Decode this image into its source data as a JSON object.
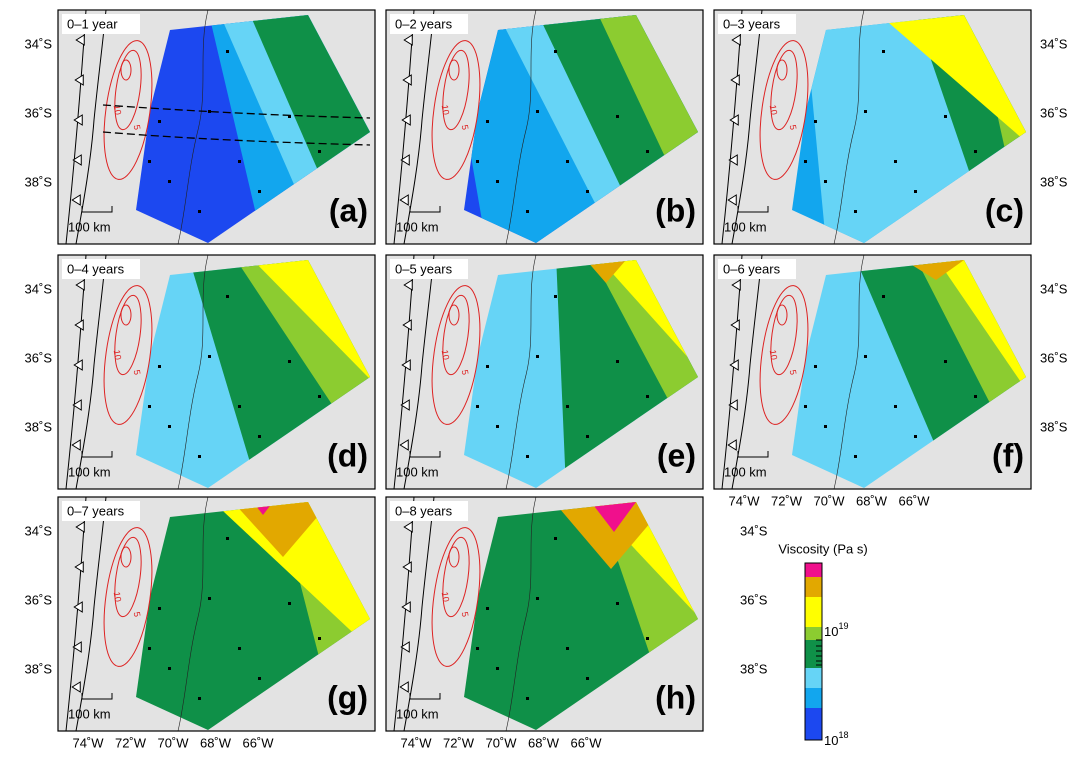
{
  "panels": [
    {
      "title": "0–1 year",
      "letter": "(a)",
      "scale": "100 km"
    },
    {
      "title": "0–2 years",
      "letter": "(b)",
      "scale": "100 km"
    },
    {
      "title": "0–3 years",
      "letter": "(c)",
      "scale": "100 km"
    },
    {
      "title": "0–4 years",
      "letter": "(d)",
      "scale": "100 km"
    },
    {
      "title": "0–5 years",
      "letter": "(e)",
      "scale": "100 km"
    },
    {
      "title": "0–6 years",
      "letter": "(f)",
      "scale": "100 km"
    },
    {
      "title": "0–7 years",
      "letter": "(g)",
      "scale": "100 km"
    },
    {
      "title": "0–8 years",
      "letter": "(h)",
      "scale": "100 km"
    }
  ],
  "lat_labels": [
    "34˚S",
    "36˚S",
    "38˚S"
  ],
  "lon_labels": [
    "74˚W",
    "72˚W",
    "70˚W",
    "68˚W",
    "66˚W"
  ],
  "contour_labels": [
    "10",
    "5"
  ],
  "colorbar": {
    "title": "Viscosity (Pa s)",
    "labels": [
      {
        "base": "10",
        "exp": "19"
      },
      {
        "base": "10",
        "exp": "18"
      }
    ]
  }
}
